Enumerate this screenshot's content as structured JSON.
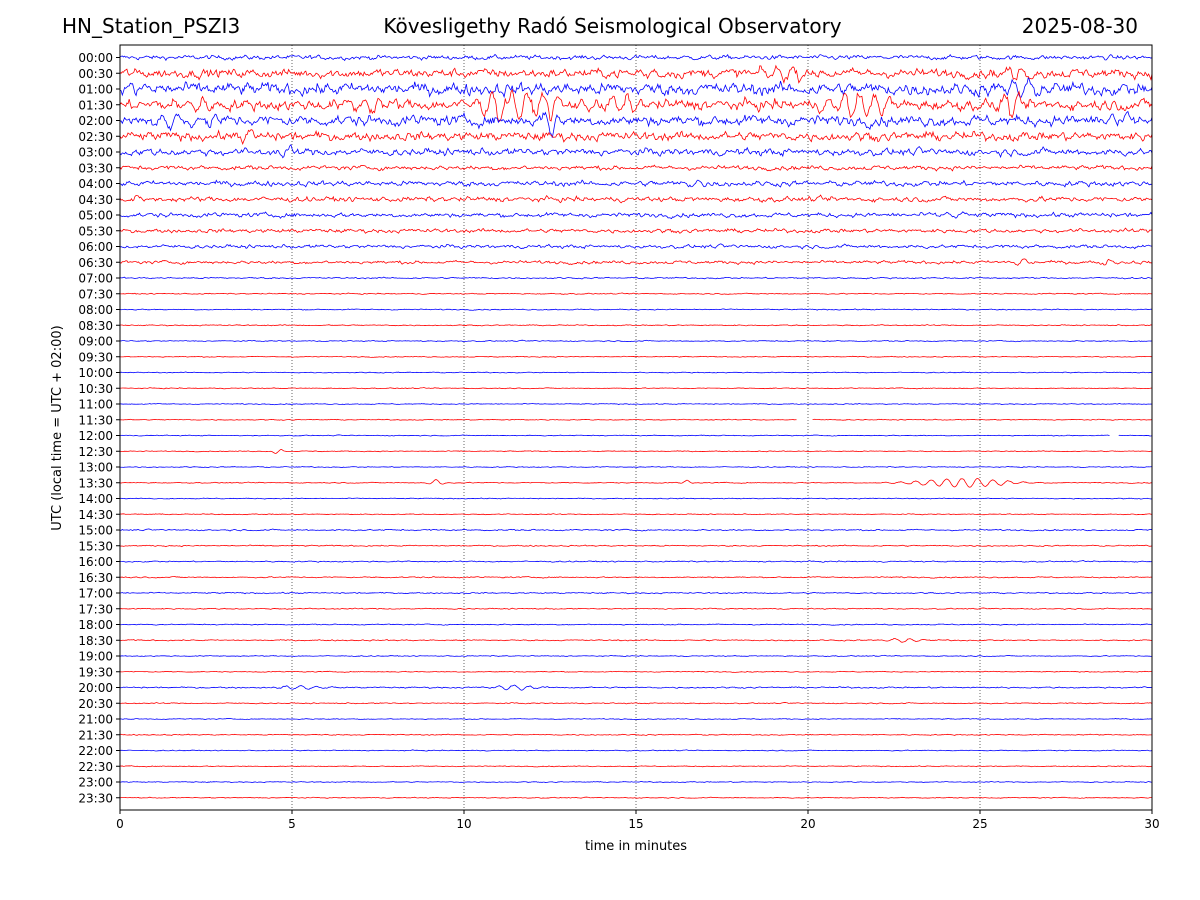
{
  "header": {
    "station": "HN_Station_PSZI3",
    "observatory": "Kövesligethy Radó Seismological Observatory",
    "date": "2025-08-30"
  },
  "chart_data": {
    "type": "line",
    "title": "Kövesligethy Radó Seismological Observatory",
    "xlabel": "time in minutes",
    "ylabel": "UTC (local time = UTC + 02:00)",
    "xlim": [
      0,
      30
    ],
    "x_ticks": [
      "0",
      "5",
      "10",
      "15",
      "20",
      "25",
      "30"
    ],
    "x_tick_values": [
      0,
      5,
      10,
      15,
      20,
      25,
      30
    ],
    "grid": "vertical dotted at x ticks",
    "row_labels": [
      "00:00",
      "00:30",
      "01:00",
      "01:30",
      "02:00",
      "02:30",
      "03:00",
      "03:30",
      "04:00",
      "04:30",
      "05:00",
      "05:30",
      "06:00",
      "06:30",
      "07:00",
      "07:30",
      "08:00",
      "08:30",
      "09:00",
      "09:30",
      "10:00",
      "10:30",
      "11:00",
      "11:30",
      "12:00",
      "12:30",
      "13:00",
      "13:30",
      "14:00",
      "14:30",
      "15:00",
      "15:30",
      "16:00",
      "16:30",
      "17:00",
      "17:30",
      "18:00",
      "18:30",
      "19:00",
      "19:30",
      "20:00",
      "20:30",
      "21:00",
      "21:30",
      "22:00",
      "22:30",
      "23:00",
      "23:30"
    ],
    "trace_colors": [
      "#0000ff",
      "#ff0000"
    ],
    "noise_level": [
      0.25,
      0.5,
      0.7,
      0.6,
      0.6,
      0.5,
      0.4,
      0.25,
      0.3,
      0.28,
      0.25,
      0.22,
      0.2,
      0.18,
      0.08,
      0.06,
      0.06,
      0.06,
      0.06,
      0.05,
      0.05,
      0.05,
      0.05,
      0.05,
      0.05,
      0.05,
      0.05,
      0.05,
      0.05,
      0.05,
      0.08,
      0.07,
      0.07,
      0.07,
      0.07,
      0.06,
      0.06,
      0.07,
      0.05,
      0.05,
      0.08,
      0.06,
      0.05,
      0.06,
      0.05,
      0.05,
      0.05,
      0.05
    ],
    "events": [
      {
        "row": 1,
        "x": 26.2,
        "amp": 0.9,
        "dur": 0.8
      },
      {
        "row": 1,
        "x": 19.5,
        "amp": 0.6,
        "dur": 1.5
      },
      {
        "row": 1,
        "x": 15.5,
        "amp": 0.45,
        "dur": 1.0
      },
      {
        "row": 2,
        "x": 0.3,
        "amp": 0.8,
        "dur": 0.8
      },
      {
        "row": 2,
        "x": 26.0,
        "amp": 1.0,
        "dur": 0.8
      },
      {
        "row": 3,
        "x": 10.9,
        "amp": 2.0,
        "dur": 0.6
      },
      {
        "row": 3,
        "x": 11.5,
        "amp": 1.8,
        "dur": 0.5
      },
      {
        "row": 3,
        "x": 12.4,
        "amp": 1.6,
        "dur": 0.6
      },
      {
        "row": 3,
        "x": 14.4,
        "amp": 1.0,
        "dur": 1.0
      },
      {
        "row": 3,
        "x": 21.6,
        "amp": 1.6,
        "dur": 1.2
      },
      {
        "row": 3,
        "x": 25.8,
        "amp": 1.3,
        "dur": 0.5
      },
      {
        "row": 3,
        "x": 7.2,
        "amp": 0.8,
        "dur": 1.0
      },
      {
        "row": 3,
        "x": 2.1,
        "amp": 0.7,
        "dur": 1.0
      },
      {
        "row": 4,
        "x": 12.5,
        "amp": 2.2,
        "dur": 0.3
      },
      {
        "row": 4,
        "x": 1.4,
        "amp": 1.0,
        "dur": 0.5
      },
      {
        "row": 4,
        "x": 2.5,
        "amp": 0.9,
        "dur": 0.5
      },
      {
        "row": 4,
        "x": 29.0,
        "amp": 0.7,
        "dur": 0.6
      },
      {
        "row": 5,
        "x": 3.6,
        "amp": 0.9,
        "dur": 0.5
      },
      {
        "row": 6,
        "x": 4.8,
        "amp": 0.5,
        "dur": 0.4
      },
      {
        "row": 8,
        "x": 16.8,
        "amp": 0.5,
        "dur": 0.4
      },
      {
        "row": 9,
        "x": 0.6,
        "amp": 0.5,
        "dur": 0.3
      },
      {
        "row": 10,
        "x": 24.2,
        "amp": 0.4,
        "dur": 0.5
      },
      {
        "row": 13,
        "x": 26.2,
        "amp": 0.4,
        "dur": 0.4
      },
      {
        "row": 13,
        "x": 28.7,
        "amp": 0.4,
        "dur": 0.3
      },
      {
        "row": 25,
        "x": 4.6,
        "amp": 0.35,
        "dur": 0.2
      },
      {
        "row": 27,
        "x": 9.2,
        "amp": 0.4,
        "dur": 0.3
      },
      {
        "row": 27,
        "x": 16.5,
        "amp": 0.3,
        "dur": 0.2
      },
      {
        "row": 27,
        "x": 24.5,
        "amp": 0.55,
        "dur": 2.0
      },
      {
        "row": 37,
        "x": 22.8,
        "amp": 0.2,
        "dur": 0.8
      },
      {
        "row": 40,
        "x": 11.5,
        "amp": 0.3,
        "dur": 0.8
      },
      {
        "row": 40,
        "x": 5.3,
        "amp": 0.25,
        "dur": 1.0
      }
    ],
    "gaps": [
      {
        "row": 23,
        "x0": 19.7,
        "x1": 20.1
      },
      {
        "row": 24,
        "x0": 28.8,
        "x1": 29.0
      }
    ]
  }
}
